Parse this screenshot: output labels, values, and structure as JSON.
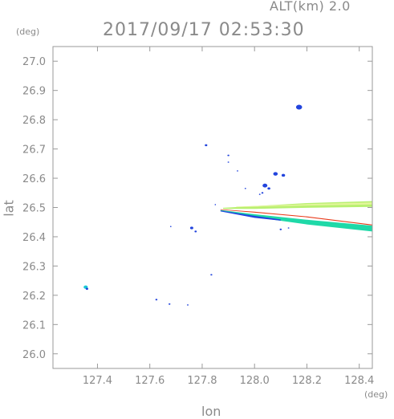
{
  "header": {
    "altitude": "ALT(km)  2.0",
    "datetime": "2017/09/17 02:53:30"
  },
  "chart_data": {
    "type": "scatter",
    "title": "2017/09/17 02:53:30",
    "subtitle": "ALT(km)  2.0",
    "xlabel": "lon",
    "ylabel": "lat",
    "x_unit": "(deg)",
    "y_unit": "(deg)",
    "xlim": [
      127.23,
      128.45
    ],
    "ylim": [
      25.95,
      27.05
    ],
    "x_ticks": [
      127.4,
      127.6,
      127.8,
      128.0,
      128.2,
      128.4
    ],
    "x_tick_labels": [
      "127.4",
      "127.6",
      "127.8",
      "128.0",
      "128.2",
      "128.4"
    ],
    "y_ticks": [
      26.0,
      26.1,
      26.2,
      26.3,
      26.4,
      26.5,
      26.6,
      26.7,
      26.8,
      26.9,
      27.0
    ],
    "y_tick_labels": [
      "26.0",
      "26.1",
      "26.2",
      "26.3",
      "26.4",
      "26.5",
      "26.6",
      "26.7",
      "26.8",
      "26.9",
      "27.0"
    ],
    "grid": false,
    "colors": {
      "axis": "#9a9a9a",
      "echo_blue": "#2244dd",
      "echo_dark_blue": "#1a2fb0",
      "echo_cyan": "#19c9d6",
      "echo_teal": "#1fd9a8",
      "echo_light_green": "#b8f070",
      "echo_yellow_green": "#e2f59a",
      "echo_green": "#4ad24a",
      "echo_red": "#e83a1a",
      "echo_orange": "#e8a020"
    },
    "echoes": [
      {
        "lon": 128.17,
        "lat": 26.843,
        "r": 3.8,
        "color": "echo_blue"
      },
      {
        "lon": 127.815,
        "lat": 26.713,
        "r": 1.6,
        "color": "echo_blue"
      },
      {
        "lon": 127.9,
        "lat": 26.678,
        "r": 1.2,
        "color": "echo_blue"
      },
      {
        "lon": 127.9,
        "lat": 26.655,
        "r": 1.0,
        "color": "echo_blue"
      },
      {
        "lon": 127.935,
        "lat": 26.625,
        "r": 0.9,
        "color": "echo_blue"
      },
      {
        "lon": 128.08,
        "lat": 26.615,
        "r": 2.8,
        "color": "echo_blue"
      },
      {
        "lon": 128.11,
        "lat": 26.61,
        "r": 2.2,
        "color": "echo_blue"
      },
      {
        "lon": 128.04,
        "lat": 26.575,
        "r": 3.0,
        "color": "echo_blue"
      },
      {
        "lon": 128.055,
        "lat": 26.565,
        "r": 1.8,
        "color": "echo_blue"
      },
      {
        "lon": 127.965,
        "lat": 26.565,
        "r": 0.9,
        "color": "echo_blue"
      },
      {
        "lon": 128.03,
        "lat": 26.55,
        "r": 1.3,
        "color": "echo_blue"
      },
      {
        "lon": 128.02,
        "lat": 26.545,
        "r": 0.9,
        "color": "echo_blue"
      },
      {
        "lon": 127.85,
        "lat": 26.51,
        "r": 0.8,
        "color": "echo_blue"
      },
      {
        "lon": 127.985,
        "lat": 26.47,
        "r": 1.1,
        "color": "echo_blue"
      },
      {
        "lon": 128.1,
        "lat": 26.425,
        "r": 1.3,
        "color": "echo_blue"
      },
      {
        "lon": 128.13,
        "lat": 26.43,
        "r": 1.0,
        "color": "echo_blue"
      },
      {
        "lon": 127.76,
        "lat": 26.43,
        "r": 2.0,
        "color": "echo_blue"
      },
      {
        "lon": 127.775,
        "lat": 26.418,
        "r": 1.4,
        "color": "echo_blue"
      },
      {
        "lon": 127.68,
        "lat": 26.435,
        "r": 0.8,
        "color": "echo_blue"
      },
      {
        "lon": 127.835,
        "lat": 26.27,
        "r": 1.2,
        "color": "echo_blue"
      },
      {
        "lon": 127.355,
        "lat": 26.228,
        "r": 2.6,
        "color": "echo_cyan"
      },
      {
        "lon": 127.36,
        "lat": 26.222,
        "r": 1.6,
        "color": "echo_blue"
      },
      {
        "lon": 127.625,
        "lat": 26.185,
        "r": 1.3,
        "color": "echo_blue"
      },
      {
        "lon": 127.675,
        "lat": 26.17,
        "r": 1.2,
        "color": "echo_blue"
      },
      {
        "lon": 127.745,
        "lat": 26.167,
        "r": 1.0,
        "color": "echo_blue"
      }
    ],
    "streaks": [
      {
        "name": "upper",
        "color": "echo_light_green",
        "points": [
          [
            127.88,
            26.497
          ],
          [
            128.0,
            26.5
          ],
          [
            128.2,
            26.507
          ],
          [
            128.45,
            26.512
          ]
        ],
        "width_deg_lat": [
          0.004,
          0.01,
          0.016,
          0.02
        ]
      },
      {
        "name": "upper-core",
        "color": "echo_yellow_green",
        "points": [
          [
            127.93,
            26.502
          ],
          [
            128.2,
            26.509
          ],
          [
            128.45,
            26.514
          ]
        ],
        "width_deg_lat": [
          0.002,
          0.005,
          0.007
        ]
      },
      {
        "name": "middle-red",
        "color": "echo_red",
        "points": [
          [
            127.87,
            26.493
          ],
          [
            128.0,
            26.484
          ],
          [
            128.2,
            26.468
          ],
          [
            128.45,
            26.44
          ]
        ],
        "width_deg_lat": [
          0.002,
          0.003,
          0.003,
          0.003
        ]
      },
      {
        "name": "lower",
        "color": "echo_teal",
        "points": [
          [
            127.87,
            26.49
          ],
          [
            128.0,
            26.472
          ],
          [
            128.2,
            26.45
          ],
          [
            128.45,
            26.428
          ]
        ],
        "width_deg_lat": [
          0.003,
          0.01,
          0.016,
          0.02
        ]
      },
      {
        "name": "lower-blue-edge",
        "color": "echo_blue",
        "points": [
          [
            127.87,
            26.488
          ],
          [
            128.0,
            26.468
          ],
          [
            128.1,
            26.457
          ]
        ],
        "width_deg_lat": [
          0.003,
          0.007,
          0.004
        ]
      }
    ]
  }
}
